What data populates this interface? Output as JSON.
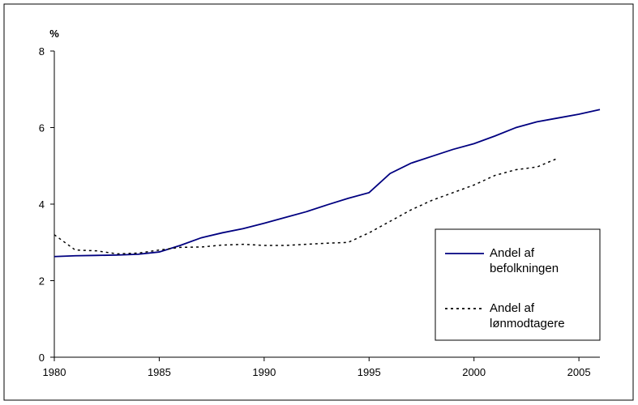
{
  "chart_data": {
    "type": "line",
    "y_label": "%",
    "x": [
      1980,
      1981,
      1982,
      1983,
      1984,
      1985,
      1986,
      1987,
      1988,
      1989,
      1990,
      1991,
      1992,
      1993,
      1994,
      1995,
      1996,
      1997,
      1998,
      1999,
      2000,
      2001,
      2002,
      2003,
      2004,
      2005,
      2006
    ],
    "series": [
      {
        "name": "Andel af befolkningen",
        "color": "#000080",
        "dash": "solid",
        "values": [
          2.63,
          2.65,
          2.66,
          2.67,
          2.69,
          2.75,
          2.92,
          3.12,
          3.25,
          3.36,
          3.5,
          3.65,
          3.8,
          3.98,
          4.15,
          4.3,
          4.8,
          5.07,
          5.25,
          5.43,
          5.58,
          5.78,
          6.0,
          6.15,
          6.25,
          6.35,
          6.47
        ]
      },
      {
        "name": "Andel af lønmodtagere",
        "color": "#000000",
        "dash": "dotted",
        "values": [
          3.2,
          2.8,
          2.78,
          2.7,
          2.72,
          2.8,
          2.87,
          2.88,
          2.93,
          2.95,
          2.92,
          2.92,
          2.95,
          2.98,
          3.0,
          3.25,
          3.55,
          3.85,
          4.1,
          4.3,
          4.5,
          4.75,
          4.9,
          4.97,
          5.2,
          null,
          null
        ]
      }
    ],
    "xlim": [
      1980,
      2006
    ],
    "xticks": [
      1980,
      1985,
      1990,
      1995,
      2000,
      2005
    ],
    "ylim": [
      0,
      8
    ],
    "yticks": [
      0,
      2,
      4,
      6,
      8
    ],
    "legend": "lower right"
  }
}
